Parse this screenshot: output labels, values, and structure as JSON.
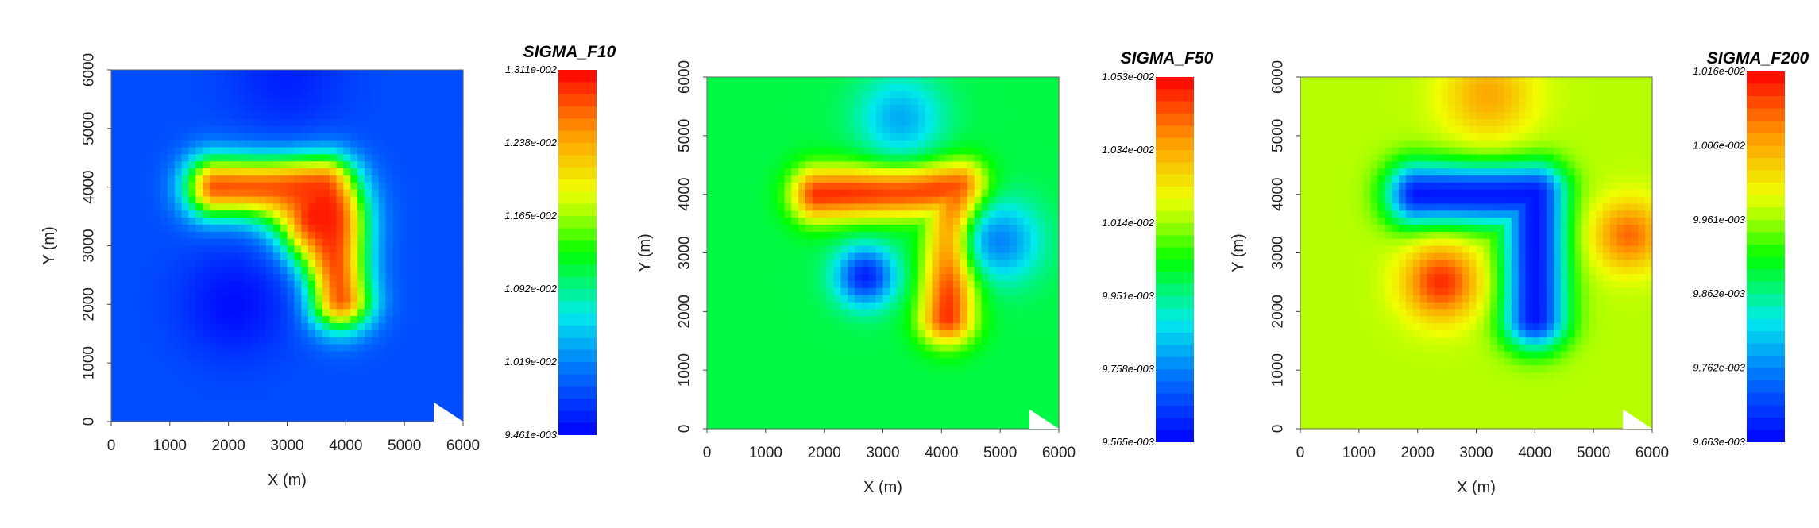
{
  "chart_data": [
    {
      "type": "heatmap",
      "title": "SIGMA_F10",
      "xlabel": "X (m)",
      "ylabel": "Y (m)",
      "xlim": [
        0,
        6000
      ],
      "ylim": [
        0,
        6000
      ],
      "xticks": [
        "0",
        "1000",
        "2000",
        "3000",
        "4000",
        "5000",
        "6000"
      ],
      "yticks": [
        "0",
        "1000",
        "2000",
        "3000",
        "4000",
        "5000",
        "6000"
      ],
      "colorbar": {
        "min": 0.009461,
        "max": 0.01311,
        "labels": [
          "1.311e-002",
          "1.238e-002",
          "1.165e-002",
          "1.092e-002",
          "1.019e-002",
          "9.461e-003"
        ]
      },
      "background_level": 0.12,
      "features": [
        {
          "kind": "L",
          "level": 0.92,
          "sigma_m": 380,
          "path": [
            [
              1800,
              4000
            ],
            [
              3600,
              4000
            ],
            [
              3900,
              2100
            ]
          ]
        },
        {
          "kind": "blob",
          "level": 0.98,
          "sigma_m": 500,
          "at": [
            3500,
            3500
          ]
        },
        {
          "kind": "blob",
          "level": 0.02,
          "sigma_m": 650,
          "at": [
            2100,
            2000
          ]
        },
        {
          "kind": "blob",
          "level": 0.05,
          "sigma_m": 700,
          "at": [
            3000,
            5900
          ]
        }
      ]
    },
    {
      "type": "heatmap",
      "title": "SIGMA_F50",
      "xlabel": "X (m)",
      "ylabel": "Y (m)",
      "xlim": [
        0,
        6000
      ],
      "ylim": [
        0,
        6000
      ],
      "xticks": [
        "0",
        "1000",
        "2000",
        "3000",
        "4000",
        "5000",
        "6000"
      ],
      "yticks": [
        "0",
        "1000",
        "2000",
        "3000",
        "4000",
        "5000",
        "6000"
      ],
      "colorbar": {
        "min": 0.009565,
        "max": 0.01053,
        "labels": [
          "1.053e-002",
          "1.034e-002",
          "1.014e-002",
          "9.951e-003",
          "9.758e-003",
          "9.565e-003"
        ]
      },
      "background_level": 0.45,
      "features": [
        {
          "kind": "L",
          "level": 0.95,
          "sigma_m": 330,
          "path": [
            [
              1900,
              4000
            ],
            [
              4300,
              4100
            ],
            [
              4100,
              1900
            ]
          ]
        },
        {
          "kind": "blob",
          "level": 0.05,
          "sigma_m": 350,
          "at": [
            2700,
            2600
          ]
        },
        {
          "kind": "blob",
          "level": 0.2,
          "sigma_m": 480,
          "at": [
            5000,
            3200
          ]
        },
        {
          "kind": "blob",
          "level": 0.25,
          "sigma_m": 500,
          "at": [
            3300,
            5300
          ]
        }
      ]
    },
    {
      "type": "heatmap",
      "title": "SIGMA_F200",
      "xlabel": "X (m)",
      "ylabel": "Y (m)",
      "xlim": [
        0,
        6000
      ],
      "ylim": [
        0,
        6000
      ],
      "xticks": [
        "0",
        "1000",
        "2000",
        "3000",
        "4000",
        "5000",
        "6000"
      ],
      "yticks": [
        "0",
        "1000",
        "2000",
        "3000",
        "4000",
        "5000",
        "6000"
      ],
      "colorbar": {
        "min": 0.009663,
        "max": 0.01016,
        "labels": [
          "1.016e-002",
          "1.006e-002",
          "9.961e-003",
          "9.862e-003",
          "9.762e-003",
          "9.663e-003"
        ]
      },
      "background_level": 0.62,
      "features": [
        {
          "kind": "L",
          "level": 0.03,
          "sigma_m": 380,
          "path": [
            [
              2000,
              4000
            ],
            [
              4000,
              4000
            ],
            [
              4000,
              1900
            ]
          ]
        },
        {
          "kind": "blob",
          "level": 0.95,
          "sigma_m": 450,
          "at": [
            2400,
            2500
          ]
        },
        {
          "kind": "blob",
          "level": 0.88,
          "sigma_m": 420,
          "at": [
            5600,
            3300
          ]
        },
        {
          "kind": "blob",
          "level": 0.8,
          "sigma_m": 550,
          "at": [
            3200,
            5700
          ]
        }
      ]
    }
  ]
}
